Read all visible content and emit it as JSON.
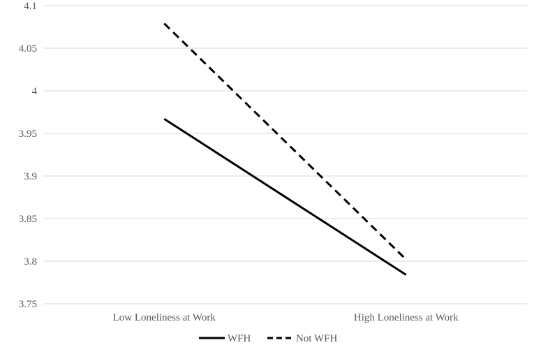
{
  "chart_data": {
    "type": "line",
    "categories": [
      "Low Loneliness at Work",
      "High Loneliness at Work"
    ],
    "series": [
      {
        "name": "WFH",
        "values": [
          3.967,
          3.784
        ],
        "color": "#000000",
        "dash": "solid"
      },
      {
        "name": "Not WFH",
        "values": [
          4.079,
          3.802
        ],
        "color": "#000000",
        "dash": "dashed"
      }
    ],
    "ylim": [
      3.75,
      4.1
    ],
    "yticks": [
      "3.75",
      "3.8",
      "3.85",
      "3.9",
      "3.95",
      "4",
      "4.05",
      "4.1"
    ],
    "grid": true,
    "legend_position": "bottom",
    "title": "",
    "xlabel": "",
    "ylabel": ""
  }
}
